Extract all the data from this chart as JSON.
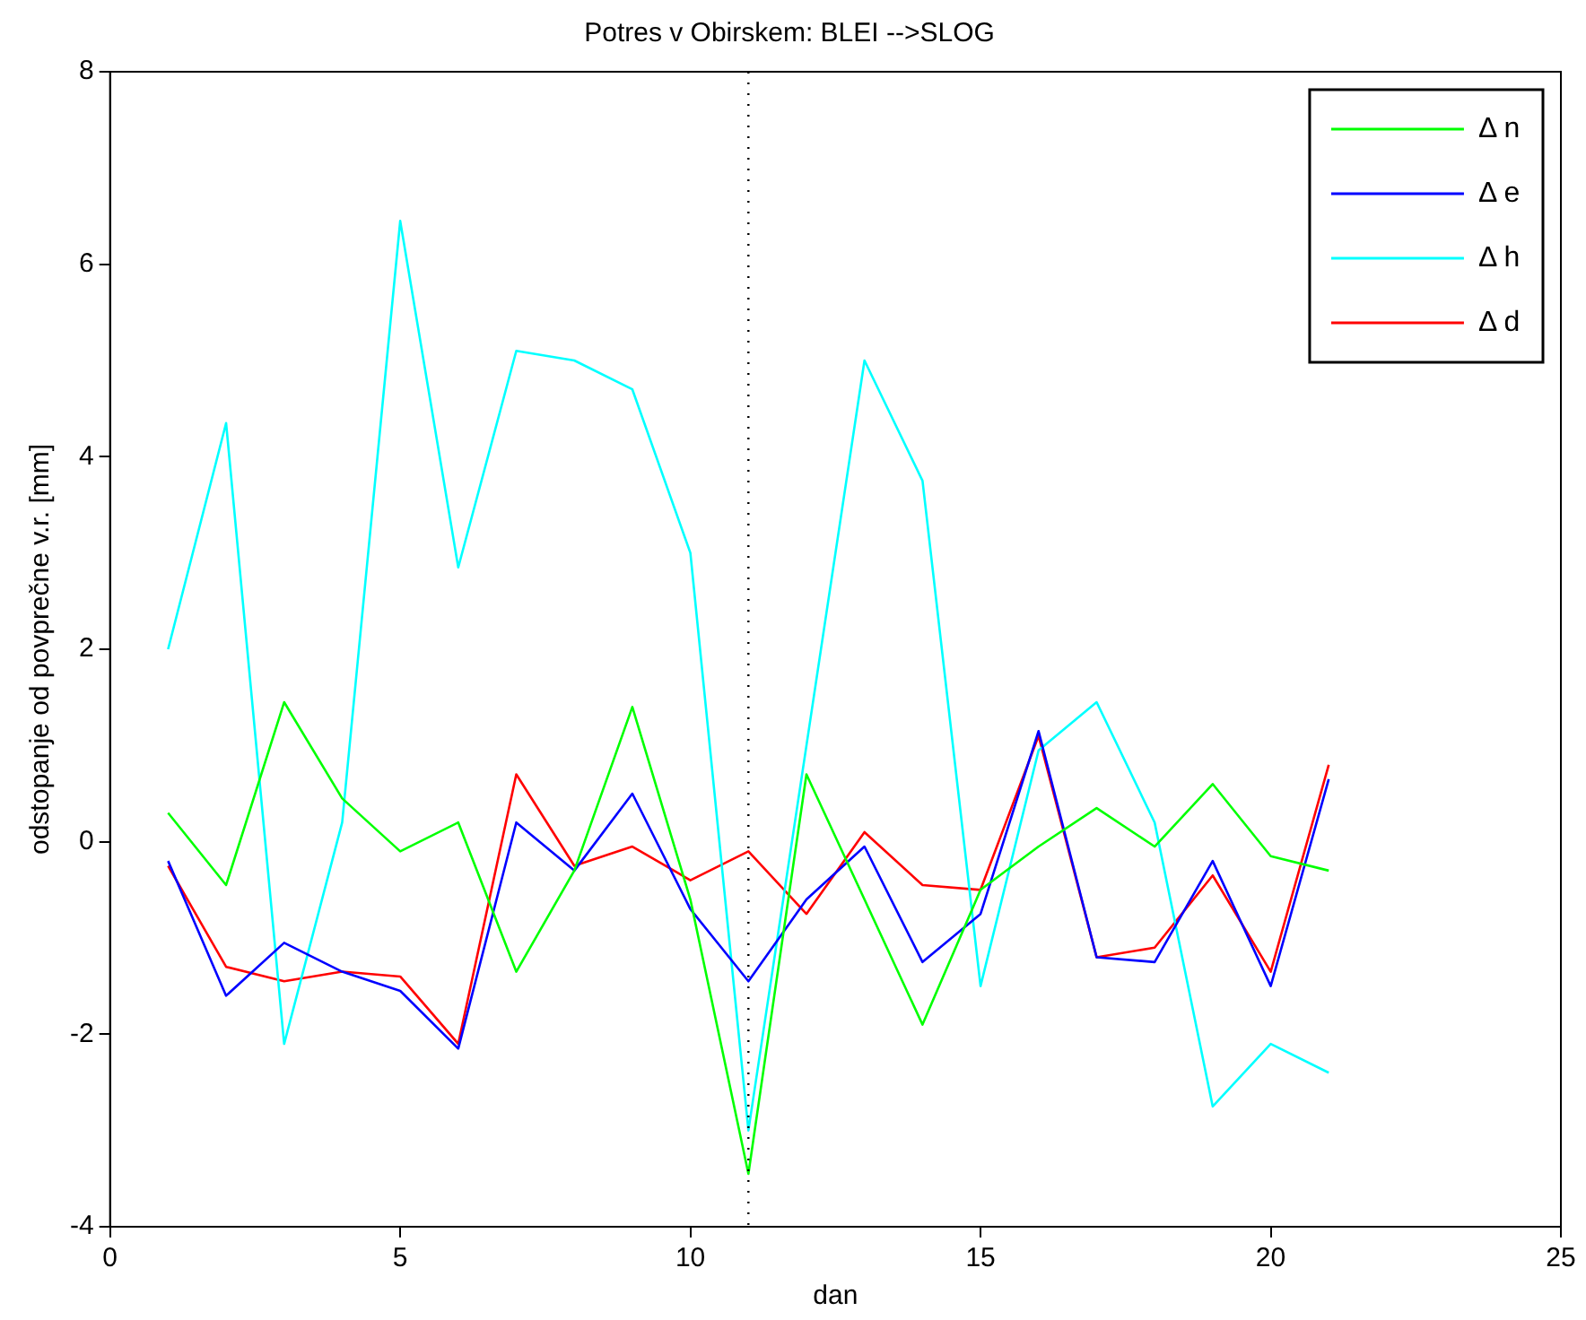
{
  "chart_data": {
    "type": "line",
    "title": "Potres v Obirskem: BLEI -->SLOG",
    "xlabel": "dan",
    "ylabel": "odstopanje od povprečne v.r. [mm]",
    "x": [
      1,
      2,
      3,
      4,
      5,
      6,
      7,
      8,
      9,
      10,
      11,
      12,
      13,
      14,
      15,
      16,
      17,
      18,
      19,
      20,
      21
    ],
    "series": [
      {
        "name": "Δ n",
        "color": "#00ff00",
        "values": [
          0.3,
          -0.45,
          1.45,
          0.45,
          -0.1,
          0.2,
          -1.35,
          -0.3,
          1.4,
          -0.6,
          -3.45,
          0.7,
          -0.6,
          -1.9,
          -0.5,
          -0.05,
          0.35,
          -0.05,
          0.6,
          -0.15,
          -0.3
        ]
      },
      {
        "name": "Δ e",
        "color": "#0000ff",
        "values": [
          -0.2,
          -1.6,
          -1.05,
          -1.35,
          -1.55,
          -2.15,
          0.2,
          -0.3,
          0.5,
          -0.7,
          -1.45,
          -0.6,
          -0.05,
          -1.25,
          -0.75,
          1.15,
          -1.2,
          -1.25,
          -0.2,
          -1.5,
          0.65
        ]
      },
      {
        "name": "Δ h",
        "color": "#00ffff",
        "values": [
          2.0,
          4.35,
          -2.1,
          0.2,
          6.45,
          2.85,
          5.1,
          5.0,
          4.7,
          3.0,
          -3.0,
          1.0,
          5.0,
          3.75,
          -1.5,
          0.95,
          1.45,
          0.2,
          -2.75,
          -2.1,
          -2.4
        ]
      },
      {
        "name": "Δ d",
        "color": "#ff0000",
        "values": [
          -0.25,
          -1.3,
          -1.45,
          -1.35,
          -1.4,
          -2.1,
          0.7,
          -0.25,
          -0.05,
          -0.4,
          -0.1,
          -0.75,
          0.1,
          -0.45,
          -0.5,
          1.1,
          -1.2,
          -1.1,
          -0.35,
          -1.35,
          0.8
        ]
      }
    ],
    "xlim": [
      0,
      25
    ],
    "xticks": [
      0,
      5,
      10,
      15,
      20,
      25
    ],
    "ylim": [
      -4,
      8
    ],
    "yticks": [
      -4,
      -2,
      0,
      2,
      4,
      6,
      8
    ],
    "ref_lines": [
      {
        "axis": "x",
        "value": 11,
        "color": "#000000",
        "line_style": "dotted"
      }
    ],
    "grid": false,
    "legend": "top right",
    "marker": "none",
    "line_style": "solid"
  }
}
